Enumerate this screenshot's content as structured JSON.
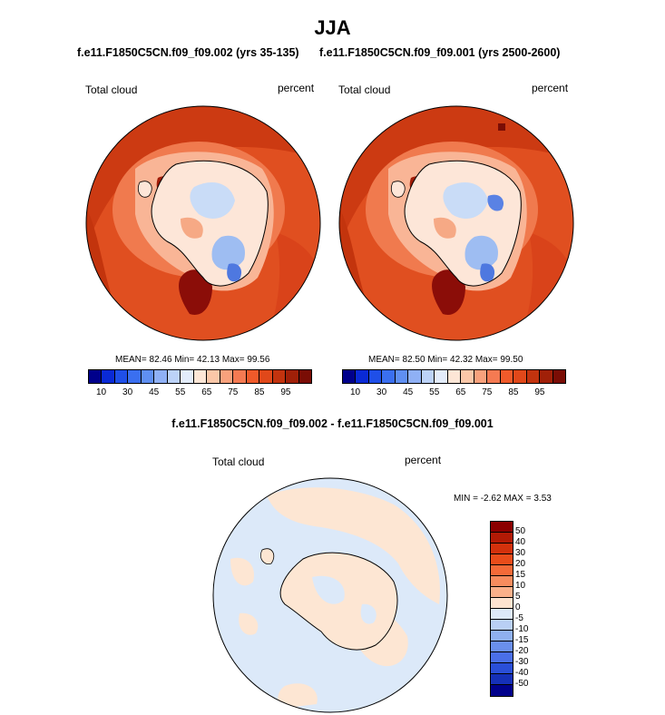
{
  "title": "JJA",
  "panels": [
    {
      "run_label": "f.e11.F1850C5CN.f09_f09.002 (yrs 35-135)",
      "field": "Total cloud",
      "units": "percent",
      "stats": {
        "mean": "82.46",
        "min": "42.13",
        "max": "99.56"
      },
      "stats_text": "MEAN=  82.46  Min=  42.13  Max=  99.56"
    },
    {
      "run_label": "f.e11.F1850C5CN.f09_f09.001 (yrs 2500-2600)",
      "field": "Total cloud",
      "units": "percent",
      "stats": {
        "mean": "82.50",
        "min": "42.32",
        "max": "99.50"
      },
      "stats_text": "MEAN=  82.50  Min=  42.32  Max=  99.50"
    }
  ],
  "colorbar": {
    "tick_labels": [
      "10",
      "30",
      "45",
      "55",
      "65",
      "75",
      "85",
      "95"
    ],
    "colors": [
      "#00008b",
      "#0a2ad6",
      "#1f4fe8",
      "#3a6ff0",
      "#5f8ff2",
      "#8fb0f5",
      "#bcd2f8",
      "#e3ecfb",
      "#fde6d6",
      "#fbc7a8",
      "#f8a17c",
      "#f57a52",
      "#f05a2a",
      "#e0481a",
      "#c2330e",
      "#a02008",
      "#7a0d05"
    ]
  },
  "difference": {
    "title": "f.e11.F1850C5CN.f09_f09.002 - f.e11.F1850C5CN.f09_f09.001",
    "field": "Total cloud",
    "units": "percent",
    "stats_text": "MIN =  -2.62 MAX =   3.53",
    "colorbar_labels": [
      "50",
      "40",
      "30",
      "20",
      "15",
      "10",
      "5",
      "0",
      "-5",
      "-10",
      "-15",
      "-20",
      "-30",
      "-40",
      "-50"
    ],
    "colorbar_colors": [
      "#8b0000",
      "#b21a05",
      "#d3310c",
      "#ea4c1a",
      "#f46a38",
      "#f78c5e",
      "#fab08a",
      "#fde3cf",
      "#dde9f8",
      "#b9cff4",
      "#8fb0f0",
      "#6a8fec",
      "#4a6fe8",
      "#2a4fd8",
      "#1530b8",
      "#00008b"
    ],
    "colors": {
      "positive": "#fde6d3",
      "negative": "#dce9f9"
    }
  },
  "colors": {
    "land_outline": "#000000"
  }
}
